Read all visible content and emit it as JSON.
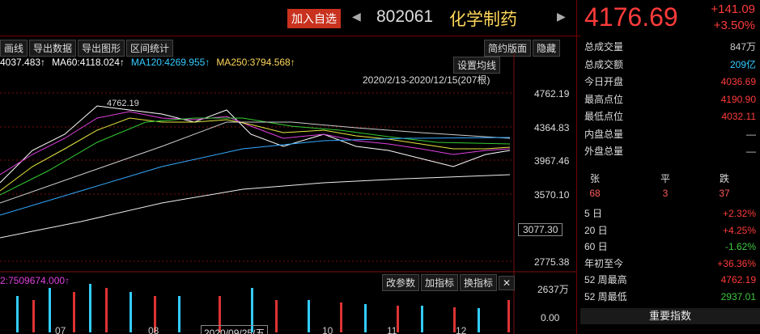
{
  "header": {
    "add_button": "加入自选",
    "prev": "◀",
    "code": "802061",
    "name": "化学制药",
    "next": "▶",
    "price": "4176.69",
    "change": "+141.09",
    "change_pct": "+3.50%"
  },
  "toolbar": {
    "left": [
      "画线",
      "导出数据",
      "导出图形",
      "区间统计"
    ],
    "right": [
      "简约版面",
      "隐藏"
    ]
  },
  "chart": {
    "ma_legend": [
      "4037.483↑",
      "MA60:4118.024↑",
      "MA120:4269.955↑",
      "MA250:3794.568↑"
    ],
    "set_ma": "设置均线",
    "range": "2020/2/13-2020/12/15(207根)",
    "high_note": "4762.19",
    "price_labels": [
      "4762.19",
      "4364.83",
      "3967.46",
      "3570.10",
      "2775.38"
    ],
    "cursor_price": "3077.30",
    "volume_legend": "2:7509674.000↑",
    "volume_buttons": [
      "改参数",
      "加指标",
      "换指标",
      "✕"
    ],
    "volume_labels": [
      "2637万",
      "0.00"
    ],
    "x_labels": [
      "07",
      "08",
      "10",
      "11",
      "12"
    ],
    "cursor_date": "2020/09/25/五"
  },
  "panel": {
    "stats": [
      [
        "总成交量",
        "847万"
      ],
      [
        "总成交额",
        "209亿"
      ],
      [
        "今日开盘",
        "4036.69"
      ],
      [
        "最高点位",
        "4190.90"
      ],
      [
        "最低点位",
        "4032.11"
      ],
      [
        "内盘总量",
        "—"
      ],
      [
        "外盘总量",
        "—"
      ]
    ],
    "breadth_heads": [
      "张",
      "平",
      "跌"
    ],
    "breadth_vals": [
      "68",
      "3",
      "37"
    ],
    "returns": [
      [
        "5 日",
        "+2.32%"
      ],
      [
        "20 日",
        "+4.25%"
      ],
      [
        "60 日",
        "-1.62%"
      ],
      [
        "年初至今",
        "+36.36%"
      ],
      [
        "52 周最高",
        "4762.19"
      ],
      [
        "52 周最低",
        "2937.01"
      ]
    ],
    "footer": "重要指数"
  }
}
